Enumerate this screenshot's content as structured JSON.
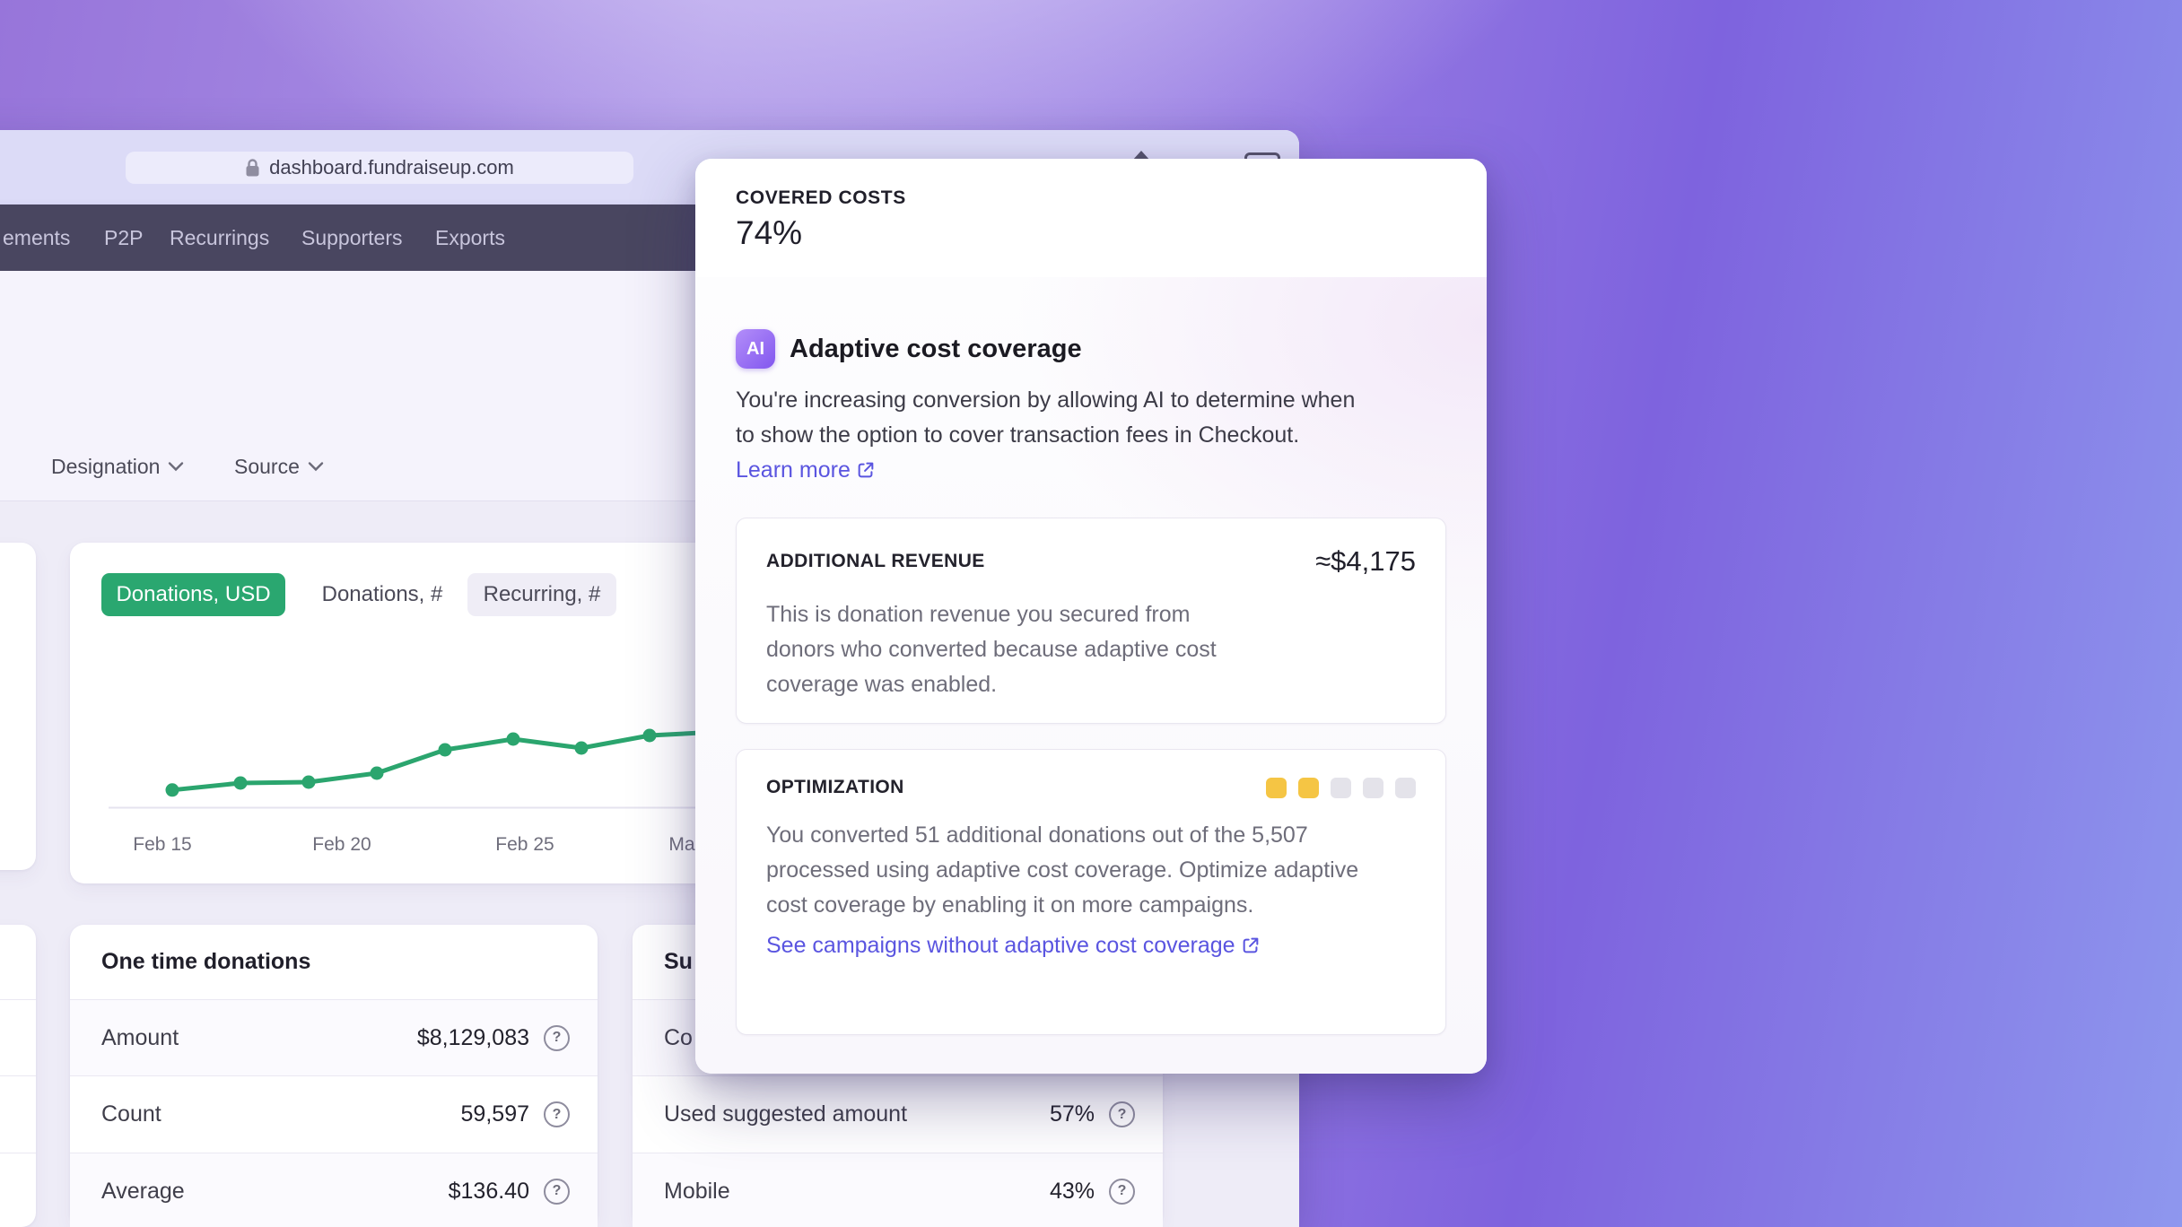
{
  "colors": {
    "accent_green": "#2aa770",
    "link": "#5a55e0",
    "nav_bg": "#494660",
    "meter_yellow": "#f5c544",
    "meter_gray": "#e4e3ea",
    "chart_line": "#2ba56e"
  },
  "browser": {
    "url": "dashboard.fundraiseup.com"
  },
  "nav": {
    "items": [
      "ements",
      "P2P",
      "Recurrings",
      "Supporters",
      "Exports"
    ]
  },
  "filters": {
    "designation": "Designation",
    "source": "Source"
  },
  "chart_card": {
    "tabs": [
      {
        "label": "Donations, USD",
        "active": true
      },
      {
        "label": "Donations, #",
        "active": false
      },
      {
        "label": "Recurring, #",
        "active": false
      }
    ]
  },
  "chart_data": {
    "type": "line",
    "title": "Donations, USD trend",
    "x_tick_labels": [
      "Feb 15",
      "Feb 20",
      "Feb 25",
      "Ma"
    ],
    "series": [
      {
        "name": "Donations, USD",
        "color": "#2ba56e",
        "values_norm": [
          0.16,
          0.225,
          0.233,
          0.317,
          0.533,
          0.633,
          0.55,
          0.667,
          0.7
        ]
      }
    ],
    "y_axis": "unlabeled",
    "grid": "off",
    "note": "sparkline-style daily donations line; right side clipped by overlay popover"
  },
  "one_time_card": {
    "title": "One time donations",
    "rows": [
      {
        "label": "Amount",
        "value": "$8,129,083"
      },
      {
        "label": "Count",
        "value": "59,597"
      },
      {
        "label": "Average",
        "value": "$136.40"
      }
    ]
  },
  "summary_card": {
    "title_partial": "Su",
    "rows": [
      {
        "label": "Co",
        "value": ""
      },
      {
        "label": "Used suggested amount",
        "value": "57%"
      },
      {
        "label": "Mobile",
        "value": "43%"
      }
    ]
  },
  "popover": {
    "header": {
      "label": "COVERED COSTS",
      "value": "74%"
    },
    "ai_badge": "AI",
    "title": "Adaptive cost coverage",
    "description": "You're increasing conversion by allowing AI to determine when to show the option to cover transaction fees in Checkout.",
    "learn_more": "Learn more",
    "additional_revenue": {
      "label": "ADDITIONAL REVENUE",
      "value": "≈$4,175",
      "description": "This is donation revenue you secured from donors who converted because adaptive cost coverage was enabled."
    },
    "optimization": {
      "label": "OPTIMIZATION",
      "meter": {
        "filled": 2,
        "total": 5
      },
      "description": "You converted 51 additional donations out of the 5,507 processed using adaptive cost coverage. Optimize adaptive cost coverage by enabling it on more campaigns.",
      "link": "See campaigns without adaptive cost coverage"
    }
  }
}
